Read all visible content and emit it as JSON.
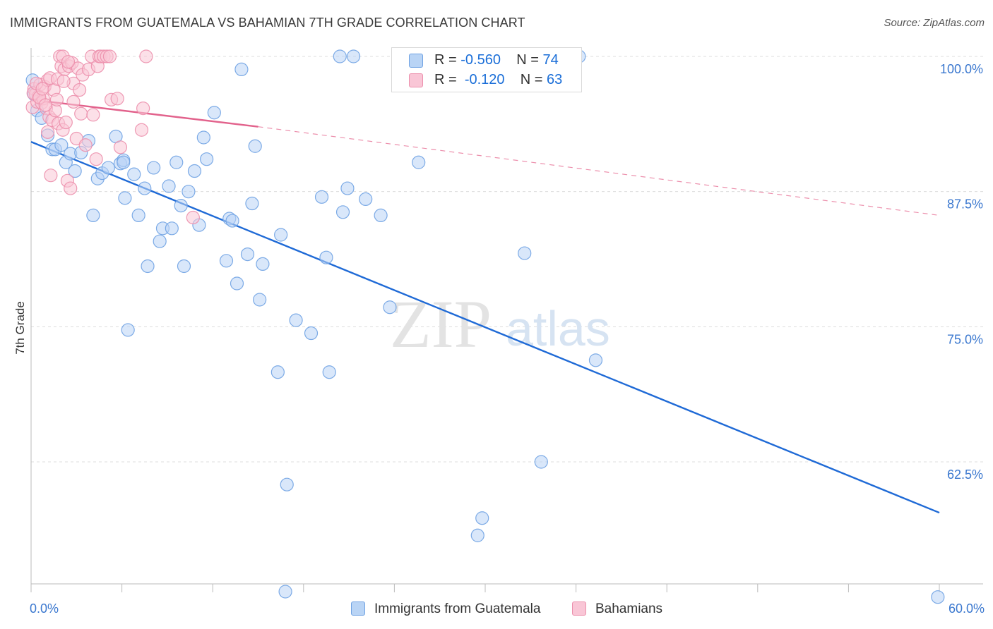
{
  "title": "IMMIGRANTS FROM GUATEMALA VS BAHAMIAN 7TH GRADE CORRELATION CHART",
  "source": "Source: ZipAtlas.com",
  "watermark": {
    "zip": "ZIP",
    "atlas": "atlas"
  },
  "legend": {
    "rows": [
      {
        "r_label": "R =",
        "r_value": "-0.560",
        "n_label": "N =",
        "n_value": "74",
        "color": "#6fa2e3"
      },
      {
        "r_label": "R =",
        "r_value": "-0.120",
        "n_label": "N =",
        "n_value": "63",
        "color": "#ec8fac"
      }
    ]
  },
  "chart_data": {
    "type": "scatter",
    "title": "IMMIGRANTS FROM GUATEMALA VS BAHAMIAN 7TH GRADE CORRELATION CHART",
    "xlabel": "",
    "ylabel": "7th Grade",
    "xlim": [
      0,
      60
    ],
    "ylim": [
      48.5,
      102
    ],
    "x_tick_labels": [
      "0.0%",
      "60.0%"
    ],
    "y_ticks": [
      62.5,
      75.0,
      87.5,
      100.0
    ],
    "y_tick_labels": [
      "62.5%",
      "75.0%",
      "87.5%",
      "100.0%"
    ],
    "grid": true,
    "legend_position": "bottom",
    "series": [
      {
        "name": "Immigrants from Guatemala",
        "color": "#6fa2e3",
        "fill": "#b9d4f5",
        "trend": {
          "x": [
            0,
            60
          ],
          "y": [
            92.1,
            57.8
          ],
          "style": "solid"
        },
        "points": [
          [
            0.1,
            97.8
          ],
          [
            0.2,
            96.5
          ],
          [
            0.4,
            95.0
          ],
          [
            0.7,
            94.3
          ],
          [
            1.1,
            92.7
          ],
          [
            1.4,
            91.4
          ],
          [
            1.6,
            91.4
          ],
          [
            2.0,
            91.8
          ],
          [
            2.3,
            90.2
          ],
          [
            2.6,
            91.0
          ],
          [
            2.9,
            89.4
          ],
          [
            3.3,
            91.1
          ],
          [
            3.8,
            92.2
          ],
          [
            4.1,
            85.3
          ],
          [
            4.4,
            88.7
          ],
          [
            4.7,
            89.2
          ],
          [
            5.1,
            89.7
          ],
          [
            5.6,
            92.6
          ],
          [
            5.9,
            90.1
          ],
          [
            6.1,
            90.4
          ],
          [
            6.1,
            90.2
          ],
          [
            6.2,
            86.9
          ],
          [
            6.4,
            74.7
          ],
          [
            6.8,
            89.1
          ],
          [
            7.1,
            85.3
          ],
          [
            7.5,
            87.8
          ],
          [
            7.7,
            80.6
          ],
          [
            8.1,
            89.7
          ],
          [
            8.5,
            82.9
          ],
          [
            8.7,
            84.1
          ],
          [
            9.1,
            88.0
          ],
          [
            9.3,
            84.1
          ],
          [
            9.6,
            90.2
          ],
          [
            9.9,
            86.2
          ],
          [
            10.1,
            80.6
          ],
          [
            10.4,
            87.5
          ],
          [
            10.8,
            89.4
          ],
          [
            11.1,
            84.4
          ],
          [
            11.4,
            92.5
          ],
          [
            11.6,
            90.5
          ],
          [
            12.1,
            94.8
          ],
          [
            12.9,
            81.1
          ],
          [
            13.1,
            85.0
          ],
          [
            13.3,
            84.8
          ],
          [
            13.6,
            79.0
          ],
          [
            13.9,
            98.8
          ],
          [
            14.3,
            81.7
          ],
          [
            14.6,
            86.4
          ],
          [
            14.8,
            91.7
          ],
          [
            15.1,
            77.5
          ],
          [
            15.3,
            80.8
          ],
          [
            16.3,
            70.8
          ],
          [
            16.5,
            83.5
          ],
          [
            16.8,
            50.5
          ],
          [
            16.9,
            60.4
          ],
          [
            17.5,
            75.6
          ],
          [
            18.5,
            74.4
          ],
          [
            19.2,
            87.0
          ],
          [
            19.5,
            81.4
          ],
          [
            19.7,
            70.8
          ],
          [
            20.4,
            100.0
          ],
          [
            20.6,
            85.6
          ],
          [
            20.9,
            87.8
          ],
          [
            21.3,
            100.0
          ],
          [
            22.1,
            86.8
          ],
          [
            23.1,
            85.3
          ],
          [
            23.7,
            76.8
          ],
          [
            25.6,
            90.2
          ],
          [
            29.5,
            55.7
          ],
          [
            29.8,
            57.3
          ],
          [
            32.6,
            81.8
          ],
          [
            33.7,
            62.5
          ],
          [
            36.2,
            100.0
          ],
          [
            37.3,
            71.9
          ],
          [
            59.9,
            50.0
          ]
        ]
      },
      {
        "name": "Bahamians",
        "color": "#ec8fac",
        "fill": "#f9c6d6",
        "trend": {
          "x": [
            0,
            15
          ],
          "y": [
            96.0,
            93.5
          ],
          "style": "solid"
        },
        "trend_extension": {
          "x": [
            15,
            60
          ],
          "y": [
            93.5,
            85.3
          ],
          "style": "dashed"
        },
        "points": [
          [
            0.1,
            95.3
          ],
          [
            0.2,
            97.0
          ],
          [
            0.3,
            96.5
          ],
          [
            0.4,
            95.8
          ],
          [
            0.5,
            96.3
          ],
          [
            0.6,
            97.4
          ],
          [
            0.7,
            95.7
          ],
          [
            0.8,
            96.1
          ],
          [
            0.9,
            97.2
          ],
          [
            1.0,
            95.2
          ],
          [
            1.1,
            93.0
          ],
          [
            1.1,
            97.8
          ],
          [
            1.2,
            94.4
          ],
          [
            1.3,
            89.0
          ],
          [
            1.4,
            94.1
          ],
          [
            1.5,
            96.9
          ],
          [
            1.6,
            95.0
          ],
          [
            1.7,
            96.0
          ],
          [
            1.8,
            93.8
          ],
          [
            1.9,
            100.0
          ],
          [
            2.0,
            99.1
          ],
          [
            2.1,
            100.0
          ],
          [
            2.1,
            93.2
          ],
          [
            2.2,
            98.8
          ],
          [
            2.3,
            93.9
          ],
          [
            2.4,
            88.5
          ],
          [
            2.5,
            99.1
          ],
          [
            2.6,
            87.8
          ],
          [
            2.7,
            99.4
          ],
          [
            2.8,
            97.5
          ],
          [
            2.8,
            95.8
          ],
          [
            3.0,
            92.4
          ],
          [
            3.1,
            98.9
          ],
          [
            3.2,
            96.9
          ],
          [
            3.3,
            94.7
          ],
          [
            3.4,
            98.3
          ],
          [
            3.6,
            91.8
          ],
          [
            3.8,
            98.8
          ],
          [
            4.0,
            100.0
          ],
          [
            4.1,
            94.6
          ],
          [
            4.3,
            90.5
          ],
          [
            4.4,
            99.1
          ],
          [
            4.5,
            100.0
          ],
          [
            4.6,
            100.0
          ],
          [
            4.8,
            100.0
          ],
          [
            5.0,
            100.0
          ],
          [
            5.2,
            100.0
          ],
          [
            5.3,
            96.0
          ],
          [
            5.7,
            96.1
          ],
          [
            5.9,
            91.6
          ],
          [
            7.3,
            93.2
          ],
          [
            7.4,
            95.2
          ],
          [
            7.6,
            100.0
          ],
          [
            10.7,
            85.1
          ],
          [
            0.15,
            96.6
          ],
          [
            0.35,
            97.5
          ],
          [
            0.55,
            96.2
          ],
          [
            0.75,
            97.0
          ],
          [
            0.95,
            95.5
          ],
          [
            1.25,
            98.0
          ],
          [
            1.75,
            97.9
          ],
          [
            2.15,
            97.7
          ],
          [
            2.45,
            99.5
          ]
        ]
      }
    ]
  }
}
